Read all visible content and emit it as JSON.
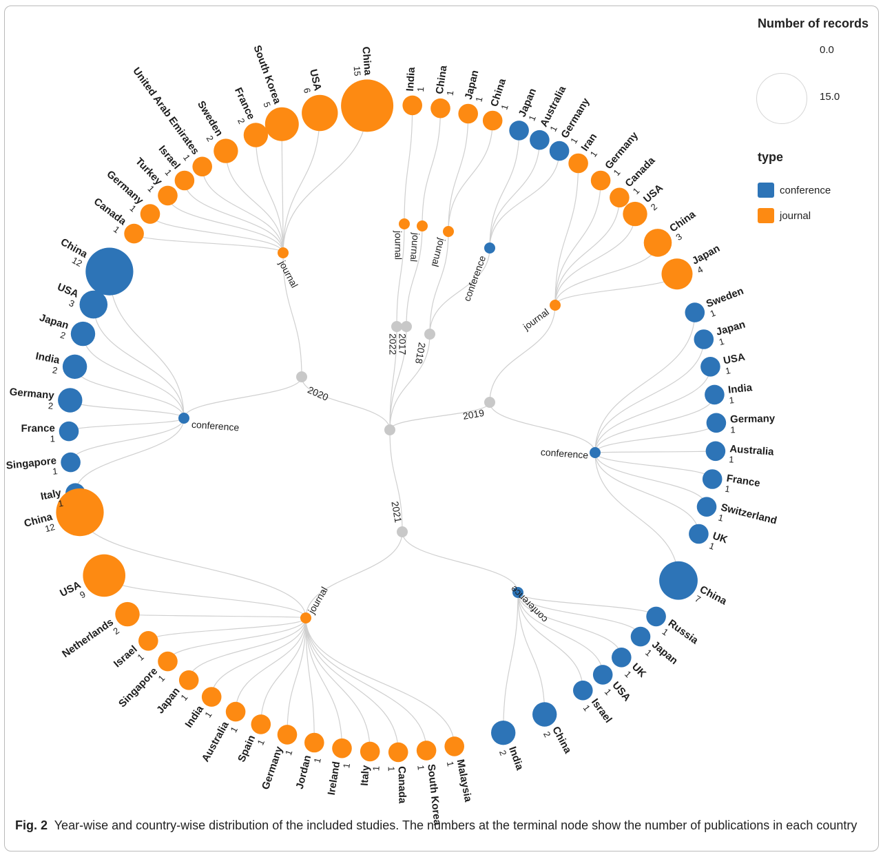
{
  "legend": {
    "size_title": "Number of records",
    "size_min_label": "0.0",
    "size_max_label": "15.0",
    "type_title": "type",
    "type_items": [
      {
        "label": "conference",
        "color": "#2d74b7"
      },
      {
        "label": "journal",
        "color": "#fd8a12"
      }
    ]
  },
  "colors": {
    "conference": "#2d74b7",
    "journal": "#fd8a12",
    "year": "#c8c8c8",
    "root": "#c8c8c8",
    "edge": "#cfcfcf"
  },
  "caption": {
    "label": "Fig. 2",
    "text": "Year-wise and country-wise distribution of the included studies. The numbers at the terminal node show the number of publications in each country"
  },
  "tree": {
    "years": [
      {
        "label": "2020",
        "groups": [
          {
            "type": "journal",
            "label": "journal",
            "countries": [
              {
                "name": "China",
                "count": 15
              },
              {
                "name": "USA",
                "count": 6
              },
              {
                "name": "South Korea",
                "count": 5
              },
              {
                "name": "France",
                "count": 2
              },
              {
                "name": "Sweden",
                "count": 2
              },
              {
                "name": "United Arab Emirates",
                "count": 1
              },
              {
                "name": "Israel",
                "count": 1
              },
              {
                "name": "Turkey",
                "count": 1
              },
              {
                "name": "Germany",
                "count": 1
              },
              {
                "name": "Canada",
                "count": 1
              }
            ]
          },
          {
            "type": "conference",
            "label": "conference",
            "countries": [
              {
                "name": "China",
                "count": 12
              },
              {
                "name": "USA",
                "count": 3
              },
              {
                "name": "Japan",
                "count": 2
              },
              {
                "name": "India",
                "count": 2
              },
              {
                "name": "Germany",
                "count": 2
              },
              {
                "name": "France",
                "count": 1
              },
              {
                "name": "Singapore",
                "count": 1
              },
              {
                "name": "Italy",
                "count": 1
              }
            ]
          }
        ]
      },
      {
        "label": "2022",
        "groups": [
          {
            "type": "journal",
            "label": "journal",
            "countries": [
              {
                "name": "India",
                "count": 1
              }
            ]
          }
        ]
      },
      {
        "label": "2017",
        "groups": [
          {
            "type": "journal",
            "label": "journal",
            "countries": [
              {
                "name": "China",
                "count": 1
              }
            ]
          }
        ]
      },
      {
        "label": "2018",
        "groups": [
          {
            "type": "journal",
            "label": "journal",
            "countries": [
              {
                "name": "Japan",
                "count": 1
              },
              {
                "name": "China",
                "count": 1
              }
            ]
          },
          {
            "type": "conference",
            "label": "conference",
            "countries": [
              {
                "name": "Japan",
                "count": 1
              },
              {
                "name": "Australia",
                "count": 1
              },
              {
                "name": "Germany",
                "count": 1
              }
            ]
          }
        ]
      },
      {
        "label": "2019",
        "groups": [
          {
            "type": "journal",
            "label": "journal",
            "countries": [
              {
                "name": "Iran",
                "count": 1
              },
              {
                "name": "Germany",
                "count": 1
              },
              {
                "name": "Canada",
                "count": 1
              },
              {
                "name": "USA",
                "count": 2
              },
              {
                "name": "China",
                "count": 3
              },
              {
                "name": "Japan",
                "count": 4
              }
            ]
          },
          {
            "type": "conference",
            "label": "conference",
            "countries": [
              {
                "name": "Sweden",
                "count": 1
              },
              {
                "name": "Japan",
                "count": 1
              },
              {
                "name": "USA",
                "count": 1
              },
              {
                "name": "India",
                "count": 1
              },
              {
                "name": "Germany",
                "count": 1
              },
              {
                "name": "Australia",
                "count": 1
              },
              {
                "name": "France",
                "count": 1
              },
              {
                "name": "Switzerland",
                "count": 1
              },
              {
                "name": "UK",
                "count": 1
              },
              {
                "name": "China",
                "count": 7
              }
            ]
          }
        ]
      },
      {
        "label": "2021",
        "groups": [
          {
            "type": "conference",
            "label": "conference",
            "countries": [
              {
                "name": "Russia",
                "count": 1
              },
              {
                "name": "Japan",
                "count": 1
              },
              {
                "name": "UK",
                "count": 1
              },
              {
                "name": "USA",
                "count": 1
              },
              {
                "name": "Israel",
                "count": 1
              },
              {
                "name": "China",
                "count": 2
              },
              {
                "name": "India",
                "count": 2
              }
            ]
          },
          {
            "type": "journal",
            "label": "journal",
            "countries": [
              {
                "name": "Malaysia",
                "count": 1
              },
              {
                "name": "South Korea",
                "count": 1
              },
              {
                "name": "Canada",
                "count": 1
              },
              {
                "name": "Italy",
                "count": 1
              },
              {
                "name": "Ireland",
                "count": 1
              },
              {
                "name": "Jordan",
                "count": 1
              },
              {
                "name": "Germany",
                "count": 1
              },
              {
                "name": "Spain",
                "count": 1
              },
              {
                "name": "Australia",
                "count": 1
              },
              {
                "name": "India",
                "count": 1
              },
              {
                "name": "Japan",
                "count": 1
              },
              {
                "name": "Singapore",
                "count": 1
              },
              {
                "name": "Israel",
                "count": 1
              },
              {
                "name": "Netherlands",
                "count": 2
              },
              {
                "name": "USA",
                "count": 9
              },
              {
                "name": "China",
                "count": 12
              }
            ]
          }
        ]
      }
    ]
  }
}
